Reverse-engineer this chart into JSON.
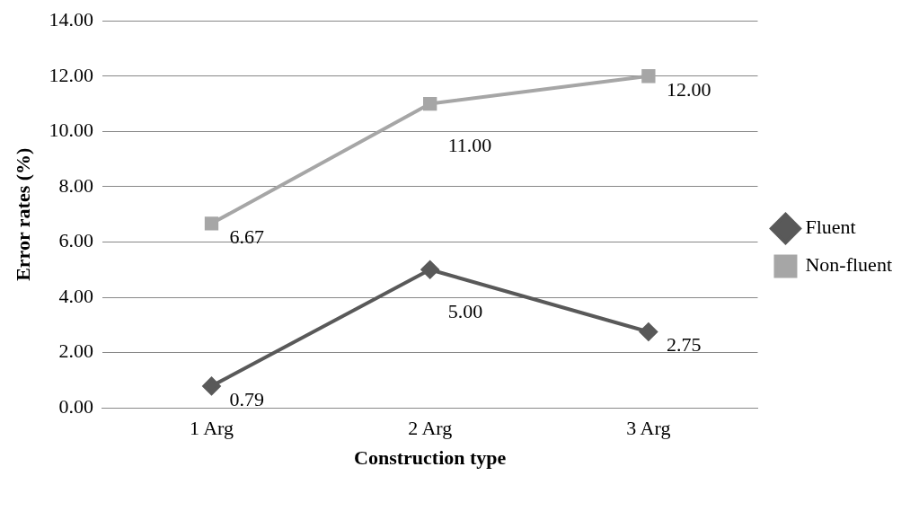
{
  "chart_data": {
    "type": "line",
    "xlabel": "Construction type",
    "ylabel": "Error rates (%)",
    "categories": [
      "1 Arg",
      "2 Arg",
      "3 Arg"
    ],
    "series": [
      {
        "name": "Fluent",
        "color": "#595959",
        "marker": "diamond",
        "values": [
          0.79,
          5.0,
          2.75
        ],
        "value_labels": [
          "0.79",
          "5.00",
          "2.75"
        ]
      },
      {
        "name": "Non-fluent",
        "color": "#a6a6a6",
        "marker": "square",
        "values": [
          6.67,
          11.0,
          12.0
        ],
        "value_labels": [
          "6.67",
          "11.00",
          "12.00"
        ]
      }
    ],
    "ylim": [
      0,
      14
    ],
    "yticks": [
      {
        "value": 0,
        "label": "0.00"
      },
      {
        "value": 2,
        "label": "2.00"
      },
      {
        "value": 4,
        "label": "4.00"
      },
      {
        "value": 6,
        "label": "6.00"
      },
      {
        "value": 8,
        "label": "8.00"
      },
      {
        "value": 10,
        "label": "10.00"
      },
      {
        "value": 12,
        "label": "12.00"
      },
      {
        "value": 14,
        "label": "14.00"
      }
    ],
    "grid": "y",
    "legend": "right"
  }
}
